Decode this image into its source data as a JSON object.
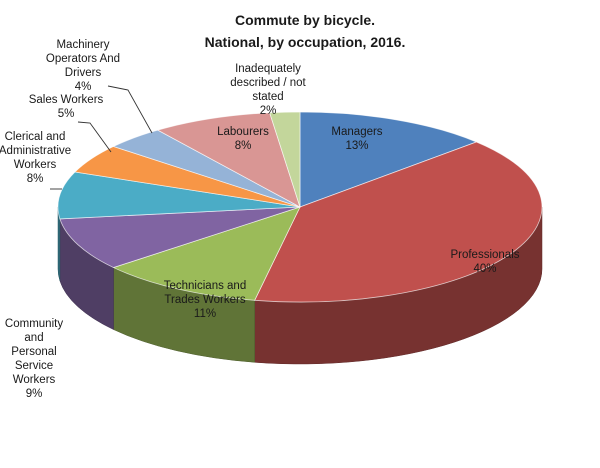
{
  "chart_data": {
    "type": "pie",
    "title": "Commute by bicycle.",
    "subtitle": "National, by occupation, 2016.",
    "slices": [
      {
        "label": "Managers",
        "value": 13,
        "value_label": "13%",
        "color": "#4F81BD"
      },
      {
        "label": "Professionals",
        "value": 40,
        "value_label": "40%",
        "color": "#C0504D"
      },
      {
        "label": "Technicians and Trades Workers",
        "value": 11,
        "value_label": "11%",
        "color": "#9BBB59"
      },
      {
        "label": "Community and Personal Service Workers",
        "value": 9,
        "value_label": "9%",
        "color": "#8064A2"
      },
      {
        "label": "Clerical and Administrative Workers",
        "value": 8,
        "value_label": "8%",
        "color": "#4BACC6"
      },
      {
        "label": "Sales Workers",
        "value": 5,
        "value_label": "5%",
        "color": "#F79646"
      },
      {
        "label": "Machinery Operators And Drivers",
        "value": 4,
        "value_label": "4%",
        "color": "#95B3D7"
      },
      {
        "label": "Labourers",
        "value": 8,
        "value_label": "8%",
        "color": "#D99694"
      },
      {
        "label": "Inadequately described / not stated",
        "value": 2,
        "value_label": "2%",
        "color": "#C3D69B"
      }
    ]
  }
}
